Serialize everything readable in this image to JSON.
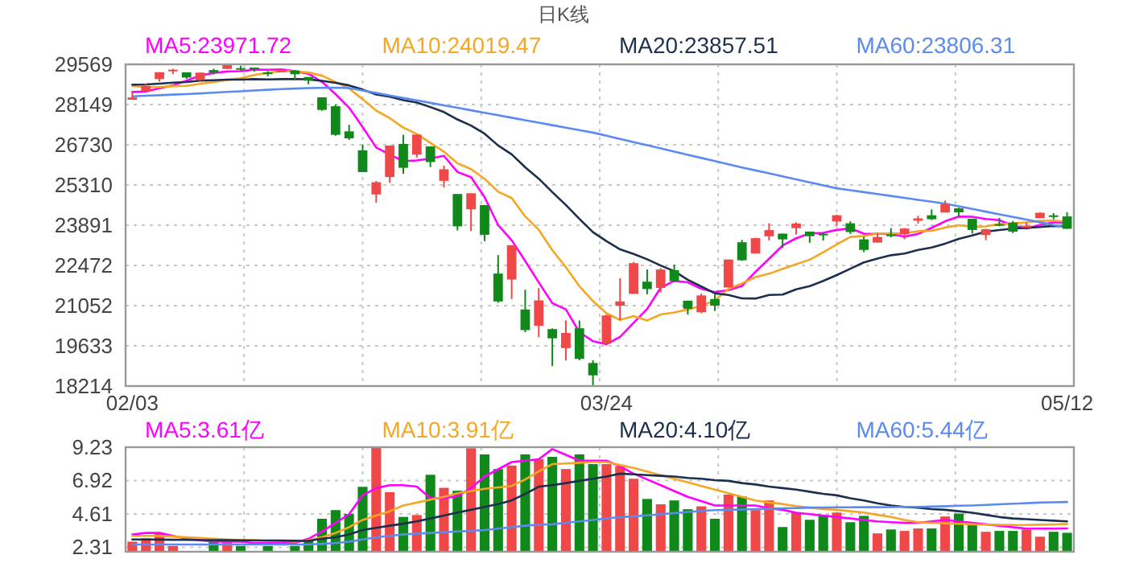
{
  "chart_data": [
    {
      "type": "candlestick",
      "subtitle": "日K线",
      "categories": [
        "02/03",
        null,
        null,
        null,
        null,
        null,
        null,
        null,
        null,
        null,
        null,
        null,
        null,
        null,
        null,
        null,
        null,
        null,
        null,
        null,
        null,
        null,
        null,
        null,
        null,
        null,
        null,
        null,
        null,
        null,
        null,
        null,
        null,
        null,
        null,
        "03/24",
        null,
        null,
        null,
        null,
        null,
        null,
        null,
        null,
        null,
        null,
        null,
        null,
        null,
        null,
        null,
        null,
        null,
        null,
        null,
        null,
        null,
        null,
        null,
        null,
        null,
        null,
        null,
        null,
        null,
        null,
        null,
        null,
        null,
        "05/12"
      ],
      "ohlc": [
        [
          28319,
          28592,
          28319,
          28400
        ],
        [
          28626,
          28879,
          28626,
          28808
        ],
        [
          29049,
          29291,
          28959,
          29291
        ],
        [
          29361,
          29409,
          29220,
          29380
        ],
        [
          29287,
          29287,
          29057,
          29103
        ],
        [
          29019,
          29277,
          28993,
          29277
        ],
        [
          29367,
          29415,
          29212,
          29276
        ],
        [
          29407,
          29569,
          29407,
          29551
        ],
        [
          29436,
          29521,
          29347,
          29423
        ],
        [
          29455,
          29455,
          29312,
          29398
        ],
        [
          29280,
          29326,
          29150,
          29232
        ],
        [
          29313,
          29407,
          29313,
          29348
        ],
        [
          29352,
          29370,
          29031,
          29220
        ],
        [
          29120,
          29120,
          28863,
          28992
        ],
        [
          28403,
          28403,
          27928,
          27961
        ],
        [
          28090,
          28150,
          27048,
          27081
        ],
        [
          27204,
          27434,
          26899,
          26958
        ],
        [
          26536,
          26738,
          25765,
          25767
        ],
        [
          24976,
          25453,
          24681,
          25409
        ],
        [
          25591,
          26706,
          25391,
          26703
        ],
        [
          26762,
          27084,
          25706,
          25917
        ],
        [
          26383,
          27091,
          26282,
          27091
        ],
        [
          26671,
          26671,
          25943,
          26121
        ],
        [
          25458,
          25994,
          25226,
          25865
        ],
        [
          24992,
          24992,
          23707,
          23851
        ],
        [
          24453,
          25020,
          23690,
          25018
        ],
        [
          24604,
          24604,
          23328,
          23553
        ],
        [
          22184,
          22837,
          21154,
          21201
        ],
        [
          21973,
          23186,
          21285,
          23186
        ],
        [
          20917,
          21613,
          20117,
          20189
        ],
        [
          20340,
          21673,
          19940,
          21237
        ],
        [
          20224,
          20250,
          18917,
          19899
        ],
        [
          19553,
          20534,
          19114,
          20087
        ],
        [
          20253,
          20531,
          19121,
          19174
        ],
        [
          19028,
          19122,
          18214,
          18592
        ],
        [
          19723,
          20737,
          19649,
          20705
        ],
        [
          21051,
          22020,
          20540,
          21201
        ],
        [
          21469,
          22596,
          21469,
          22552
        ],
        [
          21899,
          22328,
          21453,
          21637
        ],
        [
          21678,
          22378,
          21523,
          22327
        ],
        [
          22308,
          22499,
          21871,
          21917
        ],
        [
          21227,
          21228,
          20735,
          20944
        ],
        [
          20819,
          21477,
          20784,
          21413
        ],
        [
          21285,
          21447,
          20863,
          21053
        ],
        [
          21693,
          22680,
          21693,
          22680
        ],
        [
          23290,
          23372,
          22636,
          22654
        ],
        [
          22893,
          23453,
          22893,
          23434
        ],
        [
          23500,
          23959,
          23353,
          23719
        ],
        [
          23594,
          23594,
          23086,
          23391
        ],
        [
          23789,
          23993,
          23559,
          23950
        ],
        [
          23666,
          23666,
          23271,
          23504
        ],
        [
          23589,
          23637,
          23350,
          23538
        ],
        [
          24024,
          24265,
          23880,
          24242
        ],
        [
          23958,
          24030,
          23583,
          23650
        ],
        [
          23391,
          23480,
          22941,
          23019
        ],
        [
          23278,
          23618,
          23278,
          23476
        ],
        [
          23560,
          23788,
          23463,
          23515
        ],
        [
          23570,
          23788,
          23393,
          23775
        ],
        [
          24049,
          24223,
          23949,
          24134
        ],
        [
          24242,
          24450,
          24071,
          24102
        ],
        [
          24339,
          24764,
          24339,
          24634
        ],
        [
          24485,
          24510,
          24175,
          24346
        ],
        [
          24117,
          24117,
          23592,
          23724
        ],
        [
          23543,
          23763,
          23361,
          23750
        ],
        [
          23928,
          24152,
          23852,
          23883
        ],
        [
          23985,
          24037,
          23610,
          23665
        ],
        [
          23800,
          23995,
          23800,
          23876
        ],
        [
          24141,
          24352,
          24141,
          24331
        ],
        [
          24239,
          24317,
          24097,
          24222
        ],
        [
          24201,
          24351,
          23763,
          23765
        ]
      ],
      "colors": [
        "#f04848",
        "#f04848",
        "#f04848",
        "#f04848",
        "#0f8a1a",
        "#f04848",
        "#0f8a1a",
        "#f04848",
        "#0f8a1a",
        "#0f8a1a",
        "#0f8a1a",
        "#f04848",
        "#0f8a1a",
        "#0f8a1a",
        "#0f8a1a",
        "#0f8a1a",
        "#0f8a1a",
        "#0f8a1a",
        "#f04848",
        "#f04848",
        "#0f8a1a",
        "#f04848",
        "#0f8a1a",
        "#f04848",
        "#0f8a1a",
        "#f04848",
        "#0f8a1a",
        "#0f8a1a",
        "#f04848",
        "#0f8a1a",
        "#f04848",
        "#0f8a1a",
        "#f04848",
        "#0f8a1a",
        "#0f8a1a",
        "#f04848",
        "#f04848",
        "#f04848",
        "#0f8a1a",
        "#f04848",
        "#0f8a1a",
        "#0f8a1a",
        "#f04848",
        "#0f8a1a",
        "#f04848",
        "#0f8a1a",
        "#f04848",
        "#f04848",
        "#0f8a1a",
        "#f04848",
        "#0f8a1a",
        "#0f8a1a",
        "#f04848",
        "#0f8a1a",
        "#0f8a1a",
        "#f04848",
        "#0f8a1a",
        "#f04848",
        "#f04848",
        "#0f8a1a",
        "#f04848",
        "#0f8a1a",
        "#0f8a1a",
        "#f04848",
        "#0f8a1a",
        "#0f8a1a",
        "#f04848",
        "#f04848",
        "#0f8a1a",
        "#0f8a1a"
      ],
      "ylim": [
        18214,
        29569
      ],
      "yticks": [
        {
          "value": 18214,
          "label": "18214"
        },
        {
          "value": 19633.375,
          "label": "19633"
        },
        {
          "value": 21052,
          "label": "21052"
        },
        {
          "value": 22472.125,
          "label": "22472"
        },
        {
          "value": 23891.5,
          "label": "23891"
        },
        {
          "value": 25310,
          "label": "25310"
        },
        {
          "value": 26730.25,
          "label": "26730"
        },
        {
          "value": 28149,
          "label": "28149"
        },
        {
          "value": 29569,
          "label": "29569"
        }
      ],
      "grid": true,
      "legend": "top",
      "series": [
        {
          "name": "MA5:23971.72",
          "type": "line",
          "color": "#ff00ff",
          "values": [
            28594,
            28611,
            28723,
            28827,
            28996,
            29172,
            29265,
            29317,
            29326,
            29385,
            29376,
            29390,
            29324,
            29238,
            28951,
            28520,
            28042,
            27352,
            26635,
            26384,
            26151,
            26177,
            26248,
            26339,
            25769,
            25589,
            24882,
            23898,
            23362,
            22629,
            21873,
            21142,
            20920,
            20117,
            19798,
            19691,
            19952,
            20445,
            20937,
            21684,
            21927,
            21875,
            21648,
            21531,
            21601,
            21749,
            22247,
            22708,
            23176,
            23430,
            23600,
            23620,
            23725,
            23777,
            23591,
            23585,
            23580,
            23487,
            23584,
            23800,
            24032,
            24198,
            24188,
            24111,
            24067,
            23874,
            23780,
            23901,
            23995,
            23972
          ]
        },
        {
          "name": "MA10:24019.47",
          "type": "line",
          "color": "#f5a623",
          "values": [
            28804,
            28765,
            28776,
            28798,
            28809,
            28883,
            28938,
            29020,
            29077,
            29191,
            29274,
            29328,
            29321,
            29282,
            29168,
            28948,
            28716,
            28338,
            27937,
            27668,
            27336,
            27110,
            26800,
            26487,
            26077,
            25870,
            25530,
            25073,
            24851,
            24199,
            23731,
            23012,
            22409,
            21740,
            21214,
            20782,
            20547,
            20683,
            20527,
            20741,
            20809,
            20914,
            21047,
            21234,
            21643,
            21838,
            22061,
            22178,
            22354,
            22516,
            22675,
            22934,
            23217,
            23477,
            23511,
            23593,
            23600,
            23606,
            23681,
            23696,
            23809,
            23889,
            23838,
            23848,
            23934,
            23953,
            23989,
            24045,
            24053,
            24020
          ]
        },
        {
          "name": "MA20:23857.51",
          "type": "line",
          "color": "#1c2f4f",
          "values": [
            28852,
            28858,
            28888,
            28924,
            28945,
            28992,
            29009,
            29030,
            29029,
            29046,
            29039,
            29047,
            29049,
            29040,
            28989,
            28916,
            28827,
            28679,
            28507,
            28430,
            28305,
            28219,
            28061,
            27885,
            27623,
            27409,
            27123,
            26706,
            26394,
            25934,
            25534,
            25061,
            24605,
            24114,
            23646,
            23326,
            23039,
            22878,
            22689,
            22470,
            22270,
            21963,
            21728,
            21487,
            21429,
            21310,
            21304,
            21431,
            21441,
            21629,
            21742,
            21924,
            22132,
            22356,
            22577,
            22716,
            22831,
            22892,
            23018,
            23106,
            23242,
            23412,
            23528,
            23663,
            23723,
            23773,
            23795,
            23826,
            23867,
            23858
          ]
        },
        {
          "name": "MA60:23806.31",
          "type": "line",
          "color": "#5b8af0",
          "values": [
            28440,
            28460,
            28480,
            28500,
            28520,
            28545,
            28570,
            28595,
            28620,
            28645,
            28670,
            28695,
            28715,
            28730,
            28740,
            28745,
            28733,
            28646,
            28558,
            28471,
            28384,
            28296,
            28209,
            28121,
            28034,
            27947,
            27859,
            27772,
            27684,
            27597,
            27510,
            27422,
            27335,
            27247,
            27160,
            27048,
            26937,
            26825,
            26713,
            26602,
            26490,
            26378,
            26266,
            26155,
            26043,
            25931,
            25826,
            25721,
            25615,
            25510,
            25405,
            25299,
            25194,
            25126,
            25059,
            24991,
            24924,
            24856,
            24788,
            24721,
            24653,
            24559,
            24465,
            24371,
            24277,
            24183,
            24089,
            23994,
            23900,
            23806
          ]
        }
      ]
    },
    {
      "type": "bar",
      "tick_labels": "y",
      "categories": [
        null,
        null,
        null,
        null,
        null,
        null,
        null,
        null,
        null,
        null,
        null,
        null,
        null,
        null,
        null,
        null,
        null,
        null,
        null,
        null,
        null,
        null,
        null,
        null,
        null,
        null,
        null,
        null,
        null,
        null,
        null,
        null,
        null,
        null,
        null,
        null,
        null,
        null,
        null,
        null,
        null,
        null,
        null,
        null,
        null,
        null,
        null,
        null,
        null,
        null,
        null,
        null,
        null,
        null,
        null,
        null,
        null,
        null,
        null,
        null,
        null,
        null,
        null,
        null,
        null,
        null,
        null,
        null,
        null,
        null
      ],
      "ylim": [
        2.0,
        9.23
      ],
      "yticks": [
        {
          "value": 2.3075,
          "label": "2.31"
        },
        {
          "value": 4.615,
          "label": "4.61"
        },
        {
          "value": 6.9225,
          "label": "6.92"
        },
        {
          "value": 9.23,
          "label": "9.23"
        }
      ],
      "grid": true,
      "legend": "top",
      "series": [
        {
          "type": "bar",
          "values": [
            2.7,
            2.93,
            3.3,
            2.4,
            null,
            null,
            2.7,
            2.7,
            2.4,
            null,
            2.4,
            null,
            2.4,
            2.87,
            4.28,
            4.88,
            4.61,
            6.49,
            9.23,
            6.12,
            4.41,
            4.54,
            7.32,
            6.42,
            6.22,
            9.16,
            8.73,
            7.72,
            7.96,
            8.73,
            8.4,
            8.56,
            7.72,
            8.73,
            8.06,
            8.06,
            7.9,
            7.05,
            5.65,
            5.28,
            5.55,
            4.94,
            5.14,
            4.28,
            5.95,
            5.82,
            4.88,
            5.55,
            3.71,
            4.71,
            4.21,
            4.54,
            4.71,
            4.04,
            4.48,
            3.27,
            3.54,
            3.44,
            3.61,
            3.61,
            4.44,
            4.64,
            3.88,
            3.38,
            3.44,
            3.44,
            3.54,
            3.04,
            3.38,
            3.31
          ],
          "colors": [
            "#f04848",
            "#f04848",
            "#f04848",
            "#f04848",
            null,
            null,
            "#0f8a1a",
            "#f04848",
            "#0f8a1a",
            null,
            "#0f8a1a",
            null,
            "#0f8a1a",
            "#0f8a1a",
            "#0f8a1a",
            "#0f8a1a",
            "#0f8a1a",
            "#0f8a1a",
            "#f04848",
            "#f04848",
            "#0f8a1a",
            "#f04848",
            "#0f8a1a",
            "#f04848",
            "#0f8a1a",
            "#f04848",
            "#0f8a1a",
            "#0f8a1a",
            "#f04848",
            "#0f8a1a",
            "#f04848",
            "#0f8a1a",
            "#f04848",
            "#0f8a1a",
            "#0f8a1a",
            "#f04848",
            "#f04848",
            "#f04848",
            "#0f8a1a",
            "#f04848",
            "#0f8a1a",
            "#0f8a1a",
            "#f04848",
            "#0f8a1a",
            "#f04848",
            "#0f8a1a",
            "#f04848",
            "#f04848",
            "#0f8a1a",
            "#f04848",
            "#0f8a1a",
            "#0f8a1a",
            "#f04848",
            "#0f8a1a",
            "#0f8a1a",
            "#f04848",
            "#0f8a1a",
            "#f04848",
            "#f04848",
            "#0f8a1a",
            "#f04848",
            "#0f8a1a",
            "#0f8a1a",
            "#f04848",
            "#0f8a1a",
            "#0f8a1a",
            "#f04848",
            "#f04848",
            "#0f8a1a",
            "#0f8a1a"
          ]
        },
        {
          "name": "MA5:3.61亿",
          "type": "line",
          "color": "#ff00ff",
          "values": [
            3.2,
            3.3,
            3.3,
            3.1,
            2.9,
            2.8,
            2.7,
            2.7,
            2.7,
            2.6,
            2.6,
            2.6,
            2.6,
            2.9,
            3.4,
            4.0,
            4.6,
            5.9,
            6.4,
            6.6,
            6.6,
            6.5,
            5.7,
            5.7,
            5.85,
            6.4,
            7.2,
            7.7,
            8.2,
            8.3,
            8.4,
            9.1,
            8.7,
            8.3,
            8.3,
            8.3,
            7.9,
            7.4,
            7.0,
            6.6,
            6.2,
            5.8,
            5.5,
            5.2,
            5.2,
            5.2,
            5.2,
            5.0,
            4.9,
            4.7,
            4.6,
            4.5,
            4.4,
            4.3,
            4.2,
            4.1,
            4.04,
            4.0,
            4.0,
            4.1,
            4.2,
            4.1,
            4.0,
            3.9,
            3.8,
            3.7,
            3.6,
            3.6,
            3.6,
            3.61
          ]
        },
        {
          "name": "MA10:3.91亿",
          "type": "line",
          "color": "#f5a623",
          "values": [
            3.1,
            3.1,
            3.1,
            3.05,
            3.0,
            2.95,
            2.9,
            2.85,
            2.8,
            2.8,
            2.75,
            2.75,
            2.7,
            2.8,
            3.0,
            3.3,
            3.7,
            4.2,
            4.5,
            4.8,
            5.2,
            5.4,
            5.6,
            5.8,
            6.05,
            6.2,
            6.35,
            6.45,
            6.55,
            7.0,
            7.55,
            8.06,
            8.1,
            8.15,
            8.2,
            8.2,
            8.0,
            7.8,
            7.55,
            7.3,
            7.05,
            6.8,
            6.55,
            6.3,
            6.05,
            5.8,
            5.55,
            5.4,
            5.3,
            5.15,
            5.05,
            4.95,
            4.9,
            4.8,
            4.71,
            4.55,
            4.4,
            4.2,
            4.04,
            4.0,
            3.97,
            3.93,
            3.9,
            3.88,
            3.86,
            3.85,
            3.85,
            3.87,
            3.89,
            3.91
          ]
        },
        {
          "name": "MA20:4.10亿",
          "type": "line",
          "color": "#1c2f4f",
          "values": [
            2.85,
            2.85,
            2.84,
            2.83,
            2.82,
            2.81,
            2.8,
            2.8,
            2.79,
            2.78,
            2.78,
            2.77,
            2.76,
            2.75,
            2.9,
            3.0,
            3.2,
            3.5,
            3.65,
            3.8,
            3.94,
            4.1,
            4.3,
            4.5,
            4.71,
            4.9,
            5.1,
            5.3,
            5.55,
            6.0,
            6.5,
            6.6,
            6.75,
            6.9,
            7.05,
            7.2,
            7.4,
            7.35,
            7.3,
            7.25,
            7.2,
            7.1,
            7.05,
            6.95,
            6.9,
            6.75,
            6.65,
            6.5,
            6.4,
            6.3,
            6.15,
            6.0,
            5.9,
            5.7,
            5.55,
            5.35,
            5.2,
            5.1,
            5.05,
            4.95,
            4.9,
            4.8,
            4.7,
            4.55,
            4.4,
            4.3,
            4.25,
            4.2,
            4.15,
            4.1
          ]
        },
        {
          "name": "MA60:5.44亿",
          "type": "line",
          "color": "#5b8af0",
          "values": [
            2.5,
            2.5,
            2.5,
            2.5,
            2.5,
            2.5,
            2.5,
            2.5,
            2.5,
            2.5,
            2.5,
            2.5,
            2.5,
            2.5,
            2.55,
            2.6,
            2.7,
            2.85,
            3.0,
            3.1,
            3.2,
            3.25,
            3.3,
            3.35,
            3.4,
            3.44,
            3.5,
            3.6,
            3.7,
            3.8,
            3.88,
            3.9,
            4.0,
            4.1,
            4.2,
            4.3,
            4.4,
            4.44,
            4.52,
            4.6,
            4.67,
            4.75,
            4.82,
            4.88,
            4.9,
            4.92,
            4.95,
            4.97,
            5.0,
            5.02,
            5.05,
            5.06,
            5.07,
            5.07,
            5.08,
            5.08,
            5.09,
            5.1,
            5.1,
            5.12,
            5.15,
            5.18,
            5.2,
            5.24,
            5.28,
            5.32,
            5.36,
            5.4,
            5.42,
            5.44
          ]
        }
      ]
    }
  ]
}
